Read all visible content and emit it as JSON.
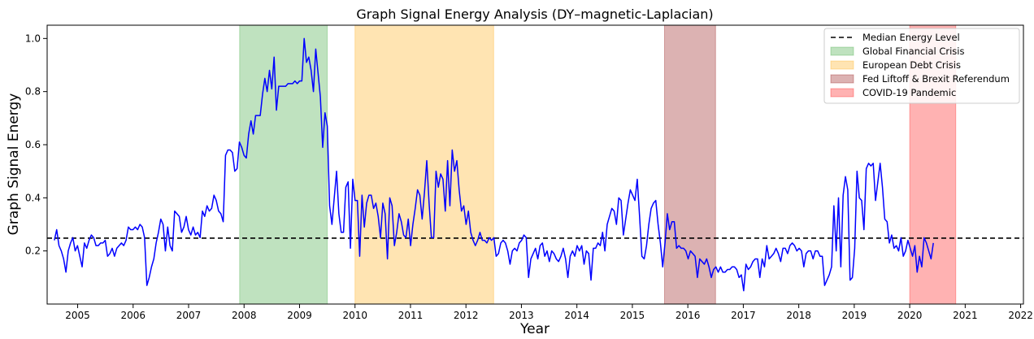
{
  "chart_data": {
    "type": "line",
    "title": "Graph Signal Energy Analysis (DY–magnetic-Laplacian)",
    "xlabel": "Year",
    "ylabel": "Graph Signal Energy",
    "xlim": [
      2004.45,
      2022.05
    ],
    "ylim": [
      0.0,
      1.05
    ],
    "x_ticks": [
      2005,
      2006,
      2007,
      2008,
      2009,
      2010,
      2011,
      2012,
      2013,
      2014,
      2015,
      2016,
      2017,
      2018,
      2019,
      2020,
      2021,
      2022
    ],
    "y_ticks": [
      0.2,
      0.4,
      0.6,
      0.8,
      1.0
    ],
    "legend_position": "top-right",
    "colors": {
      "series": "#0000ff",
      "median": "#000000",
      "gfc": "#2ca02c",
      "edc": "#ffa500",
      "fed": "#8b0000",
      "covid": "#ff0000"
    },
    "median": {
      "name": "Median Energy Level",
      "value": 0.248
    },
    "periods": [
      {
        "name": "Global Financial Crisis",
        "start": 2007.92,
        "end": 2009.5,
        "color": "#2ca02c"
      },
      {
        "name": "European Debt Crisis",
        "start": 2010.0,
        "end": 2012.5,
        "color": "#ffa500"
      },
      {
        "name": "Fed Liftoff & Brexit Referendum",
        "start": 2015.58,
        "end": 2016.5,
        "color": "#8b0000"
      },
      {
        "name": "COVID-19 Pandemic",
        "start": 2020.0,
        "end": 2020.83,
        "color": "#ff0000"
      }
    ],
    "series": [
      {
        "name": "Graph Signal Energy",
        "x_start": 2004.58,
        "x_step": 0.0417,
        "values": [
          0.24,
          0.28,
          0.22,
          0.2,
          0.17,
          0.12,
          0.2,
          0.23,
          0.25,
          0.2,
          0.22,
          0.18,
          0.14,
          0.23,
          0.21,
          0.24,
          0.26,
          0.25,
          0.22,
          0.22,
          0.23,
          0.23,
          0.24,
          0.18,
          0.19,
          0.21,
          0.18,
          0.21,
          0.22,
          0.23,
          0.22,
          0.24,
          0.29,
          0.28,
          0.28,
          0.29,
          0.28,
          0.3,
          0.29,
          0.25,
          0.07,
          0.1,
          0.14,
          0.17,
          0.23,
          0.27,
          0.32,
          0.3,
          0.2,
          0.29,
          0.22,
          0.2,
          0.35,
          0.34,
          0.33,
          0.27,
          0.29,
          0.33,
          0.28,
          0.26,
          0.29,
          0.26,
          0.27,
          0.25,
          0.35,
          0.33,
          0.37,
          0.35,
          0.36,
          0.41,
          0.39,
          0.35,
          0.34,
          0.31,
          0.56,
          0.58,
          0.58,
          0.57,
          0.5,
          0.51,
          0.61,
          0.59,
          0.56,
          0.55,
          0.64,
          0.69,
          0.64,
          0.71,
          0.71,
          0.71,
          0.79,
          0.85,
          0.8,
          0.88,
          0.81,
          0.93,
          0.73,
          0.82,
          0.82,
          0.82,
          0.82,
          0.83,
          0.83,
          0.83,
          0.84,
          0.83,
          0.84,
          0.84,
          1.0,
          0.91,
          0.93,
          0.88,
          0.8,
          0.96,
          0.87,
          0.78,
          0.59,
          0.72,
          0.67,
          0.37,
          0.3,
          0.4,
          0.5,
          0.34,
          0.27,
          0.27,
          0.44,
          0.46,
          0.21,
          0.47,
          0.39,
          0.39,
          0.18,
          0.41,
          0.29,
          0.38,
          0.41,
          0.41,
          0.36,
          0.38,
          0.33,
          0.25,
          0.38,
          0.34,
          0.17,
          0.4,
          0.37,
          0.22,
          0.27,
          0.34,
          0.31,
          0.26,
          0.25,
          0.32,
          0.22,
          0.3,
          0.36,
          0.43,
          0.41,
          0.32,
          0.42,
          0.54,
          0.38,
          0.25,
          0.25,
          0.5,
          0.44,
          0.49,
          0.47,
          0.35,
          0.54,
          0.37,
          0.58,
          0.5,
          0.54,
          0.43,
          0.35,
          0.37,
          0.3,
          0.35,
          0.27,
          0.24,
          0.22,
          0.24,
          0.27,
          0.24,
          0.24,
          0.23,
          0.25,
          0.24,
          0.25,
          0.18,
          0.19,
          0.23,
          0.24,
          0.23,
          0.2,
          0.15,
          0.2,
          0.21,
          0.2,
          0.23,
          0.24,
          0.26,
          0.25,
          0.1,
          0.17,
          0.19,
          0.21,
          0.17,
          0.22,
          0.23,
          0.18,
          0.2,
          0.16,
          0.2,
          0.19,
          0.17,
          0.16,
          0.18,
          0.21,
          0.17,
          0.1,
          0.18,
          0.2,
          0.18,
          0.22,
          0.2,
          0.22,
          0.15,
          0.2,
          0.19,
          0.09,
          0.21,
          0.21,
          0.23,
          0.22,
          0.27,
          0.2,
          0.3,
          0.33,
          0.36,
          0.35,
          0.3,
          0.4,
          0.39,
          0.26,
          0.32,
          0.38,
          0.43,
          0.41,
          0.39,
          0.47,
          0.33,
          0.18,
          0.17,
          0.22,
          0.3,
          0.36,
          0.38,
          0.39,
          0.3,
          0.23,
          0.14,
          0.23,
          0.34,
          0.28,
          0.31,
          0.31,
          0.21,
          0.22,
          0.21,
          0.21,
          0.2,
          0.17,
          0.2,
          0.19,
          0.18,
          0.1,
          0.17,
          0.16,
          0.15,
          0.17,
          0.14,
          0.1,
          0.13,
          0.14,
          0.12,
          0.14,
          0.12,
          0.12,
          0.13,
          0.13,
          0.14,
          0.14,
          0.13,
          0.1,
          0.11,
          0.05,
          0.15,
          0.13,
          0.14,
          0.16,
          0.17,
          0.17,
          0.1,
          0.17,
          0.14,
          0.22,
          0.17,
          0.18,
          0.19,
          0.21,
          0.19,
          0.16,
          0.21,
          0.21,
          0.19,
          0.22,
          0.23,
          0.22,
          0.2,
          0.21,
          0.2,
          0.14,
          0.19,
          0.2,
          0.2,
          0.17,
          0.2,
          0.2,
          0.18,
          0.18,
          0.07,
          0.09,
          0.11,
          0.14,
          0.37,
          0.2,
          0.4,
          0.14,
          0.41,
          0.48,
          0.43,
          0.09,
          0.1,
          0.21,
          0.5,
          0.4,
          0.39,
          0.28,
          0.51,
          0.53,
          0.52,
          0.53,
          0.39,
          0.46,
          0.53,
          0.44,
          0.32,
          0.31,
          0.23,
          0.26,
          0.21,
          0.22,
          0.2,
          0.25,
          0.18,
          0.2,
          0.24,
          0.21,
          0.18,
          0.22,
          0.12,
          0.18,
          0.14,
          0.25,
          0.23,
          0.2,
          0.17,
          0.23
        ]
      }
    ]
  }
}
